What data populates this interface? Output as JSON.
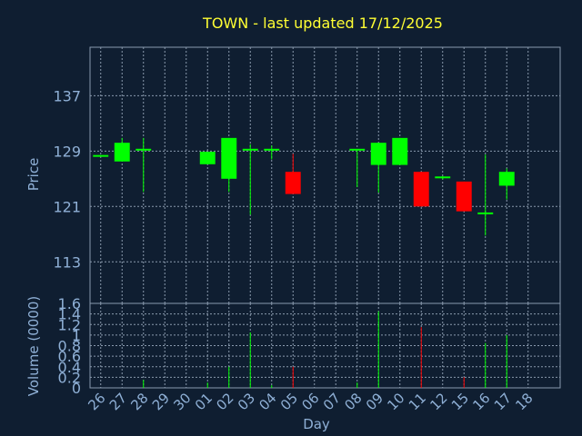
{
  "chart_data": {
    "type": "candlestick",
    "title": "TOWN - last updated 17/12/2025",
    "price_axis": {
      "label": "Price",
      "ticks": [
        113,
        121,
        129,
        137
      ],
      "ylim": [
        107,
        144
      ]
    },
    "volume_axis": {
      "label": "Volume (0000)",
      "ticks": [
        "0",
        "0.2",
        "0.4",
        "0.6",
        "0.8",
        "1",
        "1.2",
        "1.4",
        "1.6"
      ],
      "ylim": [
        0,
        1.6
      ]
    },
    "x_axis": {
      "label": "Day",
      "ticks": [
        "26",
        "27",
        "28",
        "29",
        "30",
        "01",
        "02",
        "03",
        "04",
        "05",
        "06",
        "07",
        "08",
        "09",
        "10",
        "11",
        "12",
        "15",
        "16",
        "17",
        "18"
      ]
    },
    "grid": true,
    "colors": {
      "up": "#00ff00",
      "down": "#ff0000",
      "title": "#ffff33",
      "axis_text": "#8fb0d6",
      "background": "#0f1e31"
    },
    "candles": [
      {
        "x": "26",
        "open": 128.3,
        "high": 128.3,
        "low": 128.3,
        "close": 128.3,
        "volume": 0
      },
      {
        "x": "27",
        "open": 127.5,
        "high": 130.9,
        "low": 127.5,
        "close": 130.2,
        "volume": 0
      },
      {
        "x": "28",
        "open": 129.2,
        "high": 130.9,
        "low": 123.1,
        "close": 129.2,
        "volume": 0.15
      },
      {
        "x": "01",
        "open": 127.1,
        "high": 128.9,
        "low": 127.1,
        "close": 128.9,
        "volume": 0.1
      },
      {
        "x": "02",
        "open": 125.0,
        "high": 130.9,
        "low": 123.1,
        "close": 130.9,
        "volume": 0.4
      },
      {
        "x": "03",
        "open": 129.2,
        "high": 130.0,
        "low": 119.8,
        "close": 129.2,
        "volume": 1.05
      },
      {
        "x": "04",
        "open": 129.2,
        "high": 129.8,
        "low": 127.8,
        "close": 129.2,
        "volume": 0.05
      },
      {
        "x": "05",
        "open": 126.0,
        "high": 128.6,
        "low": 122.8,
        "close": 122.8,
        "volume": 0.4
      },
      {
        "x": "08",
        "open": 129.2,
        "high": 129.2,
        "low": 123.8,
        "close": 129.2,
        "volume": 0.1
      },
      {
        "x": "09",
        "open": 127.0,
        "high": 130.2,
        "low": 123.0,
        "close": 130.2,
        "volume": 1.45
      },
      {
        "x": "10",
        "open": 127.0,
        "high": 130.9,
        "low": 127.0,
        "close": 130.9,
        "volume": 0
      },
      {
        "x": "11",
        "open": 126.0,
        "high": 126.0,
        "low": 121.0,
        "close": 121.0,
        "volume": 1.15
      },
      {
        "x": "12",
        "open": 125.2,
        "high": 125.4,
        "low": 124.9,
        "close": 125.2,
        "volume": 0
      },
      {
        "x": "15",
        "open": 124.6,
        "high": 124.6,
        "low": 120.3,
        "close": 120.3,
        "volume": 0.2
      },
      {
        "x": "16",
        "open": 120.0,
        "high": 128.5,
        "low": 116.8,
        "close": 120.0,
        "volume": 0.85
      },
      {
        "x": "17",
        "open": 124.0,
        "high": 126.5,
        "low": 122.0,
        "close": 126.0,
        "volume": 1.0
      }
    ]
  }
}
